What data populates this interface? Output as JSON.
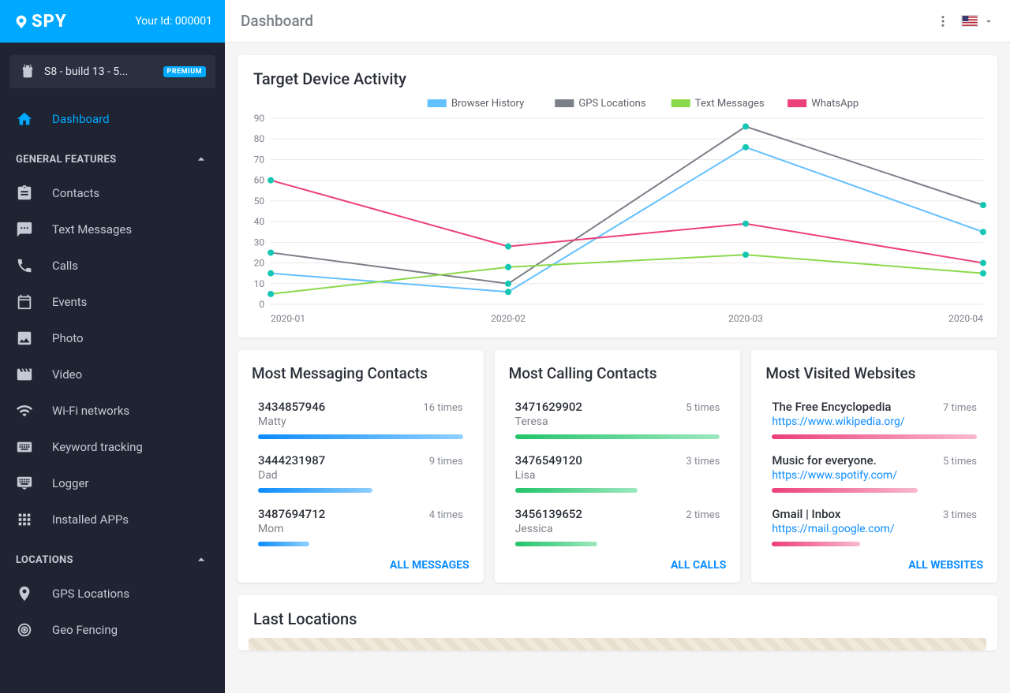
{
  "brand": {
    "name": "SPY"
  },
  "user_id": "Your Id: 000001",
  "device": {
    "label": "S8 - build 13 - 5...",
    "badge": "PREMIUM"
  },
  "nav": {
    "dashboard": "Dashboard",
    "sections": {
      "general": "GENERAL FEATURES",
      "locations": "LOCATIONS"
    },
    "items": {
      "contacts": "Contacts",
      "text_messages": "Text Messages",
      "calls": "Calls",
      "events": "Events",
      "photo": "Photo",
      "video": "Video",
      "wifi": "Wi-Fi networks",
      "keyword": "Keyword tracking",
      "logger": "Logger",
      "apps": "Installed APPs",
      "gps": "GPS Locations",
      "geo": "Geo Fencing"
    }
  },
  "header": {
    "title": "Dashboard"
  },
  "chart": {
    "title": "Target Device Activity",
    "type": "line",
    "x_labels": [
      "2020-01",
      "2020-02",
      "2020-03",
      "2020-04"
    ],
    "y_ticks": [
      0,
      10,
      20,
      30,
      40,
      50,
      60,
      70,
      80,
      90
    ],
    "ylim": [
      0,
      90
    ],
    "legend_fontsize": 13,
    "axis_fontsize": 12,
    "grid_color": "#e9e9e9",
    "axis_text_color": "#7b7f87",
    "line_width": 2,
    "marker_radius": 4,
    "marker_color": "#15c6b2",
    "series": [
      {
        "name": "Browser History",
        "color": "#63c0ff",
        "values": [
          15,
          6,
          76,
          35
        ]
      },
      {
        "name": "GPS Locations",
        "color": "#7b7f87",
        "values": [
          25,
          10,
          86,
          48
        ]
      },
      {
        "name": "Text Messages",
        "color": "#8bd94b",
        "values": [
          5,
          18,
          24,
          15
        ]
      },
      {
        "name": "WhatsApp",
        "color": "#ec407a",
        "values": [
          60,
          28,
          39,
          20
        ]
      }
    ]
  },
  "cards": {
    "messaging": {
      "title": "Most Messaging Contacts",
      "bar_color_from": "#0b8cff",
      "bar_color_to": "#8fd0ff",
      "max": 16,
      "all_link": "ALL MESSAGES",
      "items": [
        {
          "line1": "3434857946",
          "line2": "Matty",
          "count": "16 times",
          "val": 16
        },
        {
          "line1": "3444231987",
          "line2": "Dad",
          "count": "9 times",
          "val": 9
        },
        {
          "line1": "3487694712",
          "line2": "Mom",
          "count": "4 times",
          "val": 4
        }
      ]
    },
    "calling": {
      "title": "Most Calling Contacts",
      "bar_color_from": "#22c46a",
      "bar_color_to": "#9ee8bf",
      "max": 5,
      "all_link": "ALL CALLS",
      "items": [
        {
          "line1": "3471629902",
          "line2": "Teresa",
          "count": "5 times",
          "val": 5
        },
        {
          "line1": "3476549120",
          "line2": "Lisa",
          "count": "3 times",
          "val": 3
        },
        {
          "line1": "3456139652",
          "line2": "Jessica",
          "count": "2 times",
          "val": 2
        }
      ]
    },
    "websites": {
      "title": "Most Visited Websites",
      "bar_color_from": "#ec407a",
      "bar_color_to": "#f9b9d0",
      "max": 7,
      "link_style": true,
      "all_link": "ALL WEBSITES",
      "items": [
        {
          "line1": "The Free Encyclopedia",
          "line2": "https://www.wikipedia.org/",
          "count": "7 times",
          "val": 7
        },
        {
          "line1": "Music for everyone.",
          "line2": "https://www.spotify.com/",
          "count": "5 times",
          "val": 5
        },
        {
          "line1": "Gmail | Inbox",
          "line2": "https://mail.google.com/",
          "count": "3 times",
          "val": 3
        }
      ]
    }
  },
  "last_locations": {
    "title": "Last Locations"
  }
}
